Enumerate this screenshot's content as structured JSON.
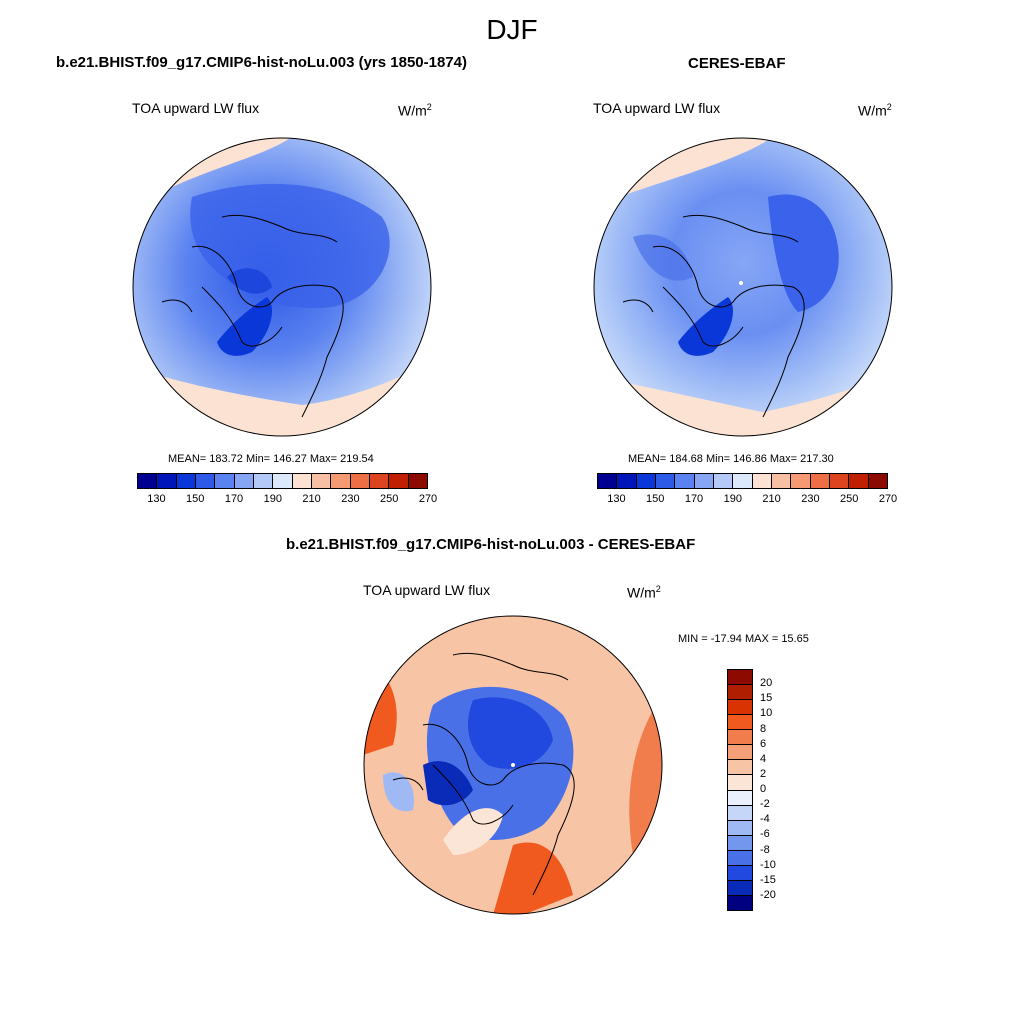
{
  "season": "DJF",
  "panels": {
    "model": {
      "title": "b.e21.BHIST.f09_g17.CMIP6-hist-noLu.003 (yrs 1850-1874)",
      "variable": "TOA upward LW flux",
      "units_base": "W/m",
      "units_exp": "2",
      "stats": "MEAN= 183.72  Min= 146.27  Max= 219.54"
    },
    "obs": {
      "title": "CERES-EBAF",
      "variable": "TOA upward LW flux",
      "units_base": "W/m",
      "units_exp": "2",
      "stats": "MEAN= 184.68  Min= 146.86  Max= 217.30"
    },
    "diff": {
      "title": "b.e21.BHIST.f09_g17.CMIP6-hist-noLu.003 - CERES-EBAF",
      "variable": "TOA upward LW flux",
      "units_base": "W/m",
      "units_exp": "2",
      "stats": "MIN = -17.94 MAX =  15.65"
    }
  },
  "colorbar_abs": {
    "colors": [
      "#000090",
      "#0016b8",
      "#0a38d8",
      "#2e5ae8",
      "#5a82f0",
      "#86a6f5",
      "#b4c9f8",
      "#dce8fb",
      "#fbe2d2",
      "#f8c0a2",
      "#f59a72",
      "#ee6e45",
      "#dd4420",
      "#c02000",
      "#8c0a00"
    ],
    "tick_labels": [
      "130",
      "150",
      "170",
      "190",
      "210",
      "230",
      "250",
      "270"
    ]
  },
  "colorbar_diff": {
    "colors": [
      "#8c0a00",
      "#b01e00",
      "#d83300",
      "#f05a1e",
      "#f27d4c",
      "#f49f78",
      "#f7c4a5",
      "#fbe5d6",
      "#eaf1fd",
      "#c6d6f8",
      "#9fb9f5",
      "#7497ee",
      "#4a70e8",
      "#2148df",
      "#0a2ab8",
      "#000080"
    ],
    "tick_labels": [
      "20",
      "15",
      "10",
      "8",
      "6",
      "4",
      "2",
      "0",
      "-2",
      "-4",
      "-6",
      "-8",
      "-10",
      "-15",
      "-20"
    ]
  }
}
